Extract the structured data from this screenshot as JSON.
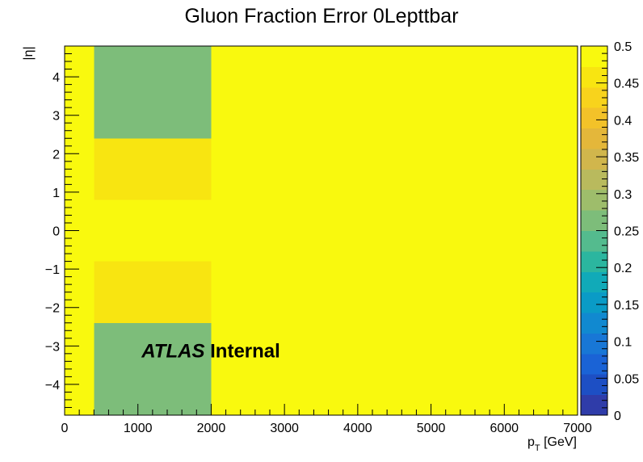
{
  "chart_data": {
    "type": "heatmap",
    "title": "Gluon Fraction Error 0Lepttbar",
    "xlabel": "p_T [GeV]",
    "xlabel_main": "p",
    "xlabel_sub": "T",
    "xlabel_unit": " [GeV]",
    "ylabel": "|η|",
    "xlim": [
      0,
      7000
    ],
    "ylim": [
      -4.8,
      4.8
    ],
    "zlim": [
      0,
      0.5
    ],
    "x_ticks": [
      "0",
      "1000",
      "2000",
      "3000",
      "4000",
      "5000",
      "6000",
      "7000"
    ],
    "y_ticks": [
      "−4",
      "−3",
      "−2",
      "−1",
      "0",
      "1",
      "2",
      "3",
      "4"
    ],
    "z_ticks": [
      "0",
      "0.05",
      "0.1",
      "0.15",
      "0.2",
      "0.25",
      "0.3",
      "0.35",
      "0.4",
      "0.45",
      "0.5"
    ],
    "cells": [
      {
        "x0": 0,
        "x1": 150,
        "y0": -4.8,
        "y1": 4.8,
        "z": 0.5
      },
      {
        "x0": 150,
        "x1": 400,
        "y0": -4.8,
        "y1": -0.8,
        "z": 0.5
      },
      {
        "x0": 150,
        "x1": 400,
        "y0": -0.8,
        "y1": 0.8,
        "z": 0.48
      },
      {
        "x0": 150,
        "x1": 400,
        "y0": 0.8,
        "y1": 4.8,
        "z": 0.5
      },
      {
        "x0": 400,
        "x1": 2000,
        "y0": -4.8,
        "y1": -2.4,
        "z": 0.27
      },
      {
        "x0": 400,
        "x1": 2000,
        "y0": -2.4,
        "y1": -0.8,
        "z": 0.45
      },
      {
        "x0": 400,
        "x1": 2000,
        "y0": -0.8,
        "y1": 0.8,
        "z": 0.48
      },
      {
        "x0": 400,
        "x1": 2000,
        "y0": 0.8,
        "y1": 2.4,
        "z": 0.45
      },
      {
        "x0": 400,
        "x1": 2000,
        "y0": 2.4,
        "y1": 4.8,
        "z": 0.27
      },
      {
        "x0": 2000,
        "x1": 7000,
        "y0": -4.8,
        "y1": 4.8,
        "z": 0.5
      }
    ],
    "palette": [
      "#2f3ca9",
      "#1d4fc4",
      "#1a63d6",
      "#1877d6",
      "#1189d0",
      "#0a9bc6",
      "#11aab8",
      "#2bb69f",
      "#54bb8e",
      "#7dbd7a",
      "#9ebd6b",
      "#b9ba5d",
      "#d1b64c",
      "#e4b73a",
      "#f3c229",
      "#f8d31c",
      "#f8e511",
      "#f9f90e"
    ],
    "annotation": {
      "bold_italic": "ATLAS",
      "bold": "Internal",
      "x": 1050,
      "y": -3.3
    }
  }
}
